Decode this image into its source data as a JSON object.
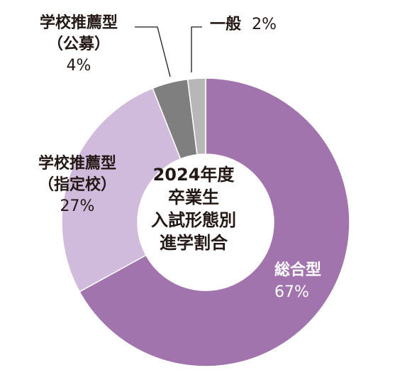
{
  "chart_data": {
    "type": "pie",
    "style": "donut",
    "title": "2024年度\n卒業生\n入試形態別\n進学割合",
    "title_lines": [
      "2024年度",
      "卒業生",
      "入試形態別",
      "進学割合"
    ],
    "slices": [
      {
        "label_lines": [
          "総合型"
        ],
        "pct_text": "67%",
        "value": 67,
        "color": "#a274ae"
      },
      {
        "label_lines": [
          "学校推薦型",
          "（指定校）"
        ],
        "pct_text": "27%",
        "value": 27,
        "color": "#d0bbdd"
      },
      {
        "label_lines": [
          "学校推薦型",
          "（公募）"
        ],
        "pct_text": "4%",
        "value": 4,
        "color": "#7f7f7f"
      },
      {
        "label_lines": [
          "一般"
        ],
        "pct_text": "2%",
        "value": 2,
        "color": "#b7b7b7"
      }
    ],
    "legend": "none",
    "text_color": "#231815",
    "inside_label_color": "#ffffff"
  }
}
